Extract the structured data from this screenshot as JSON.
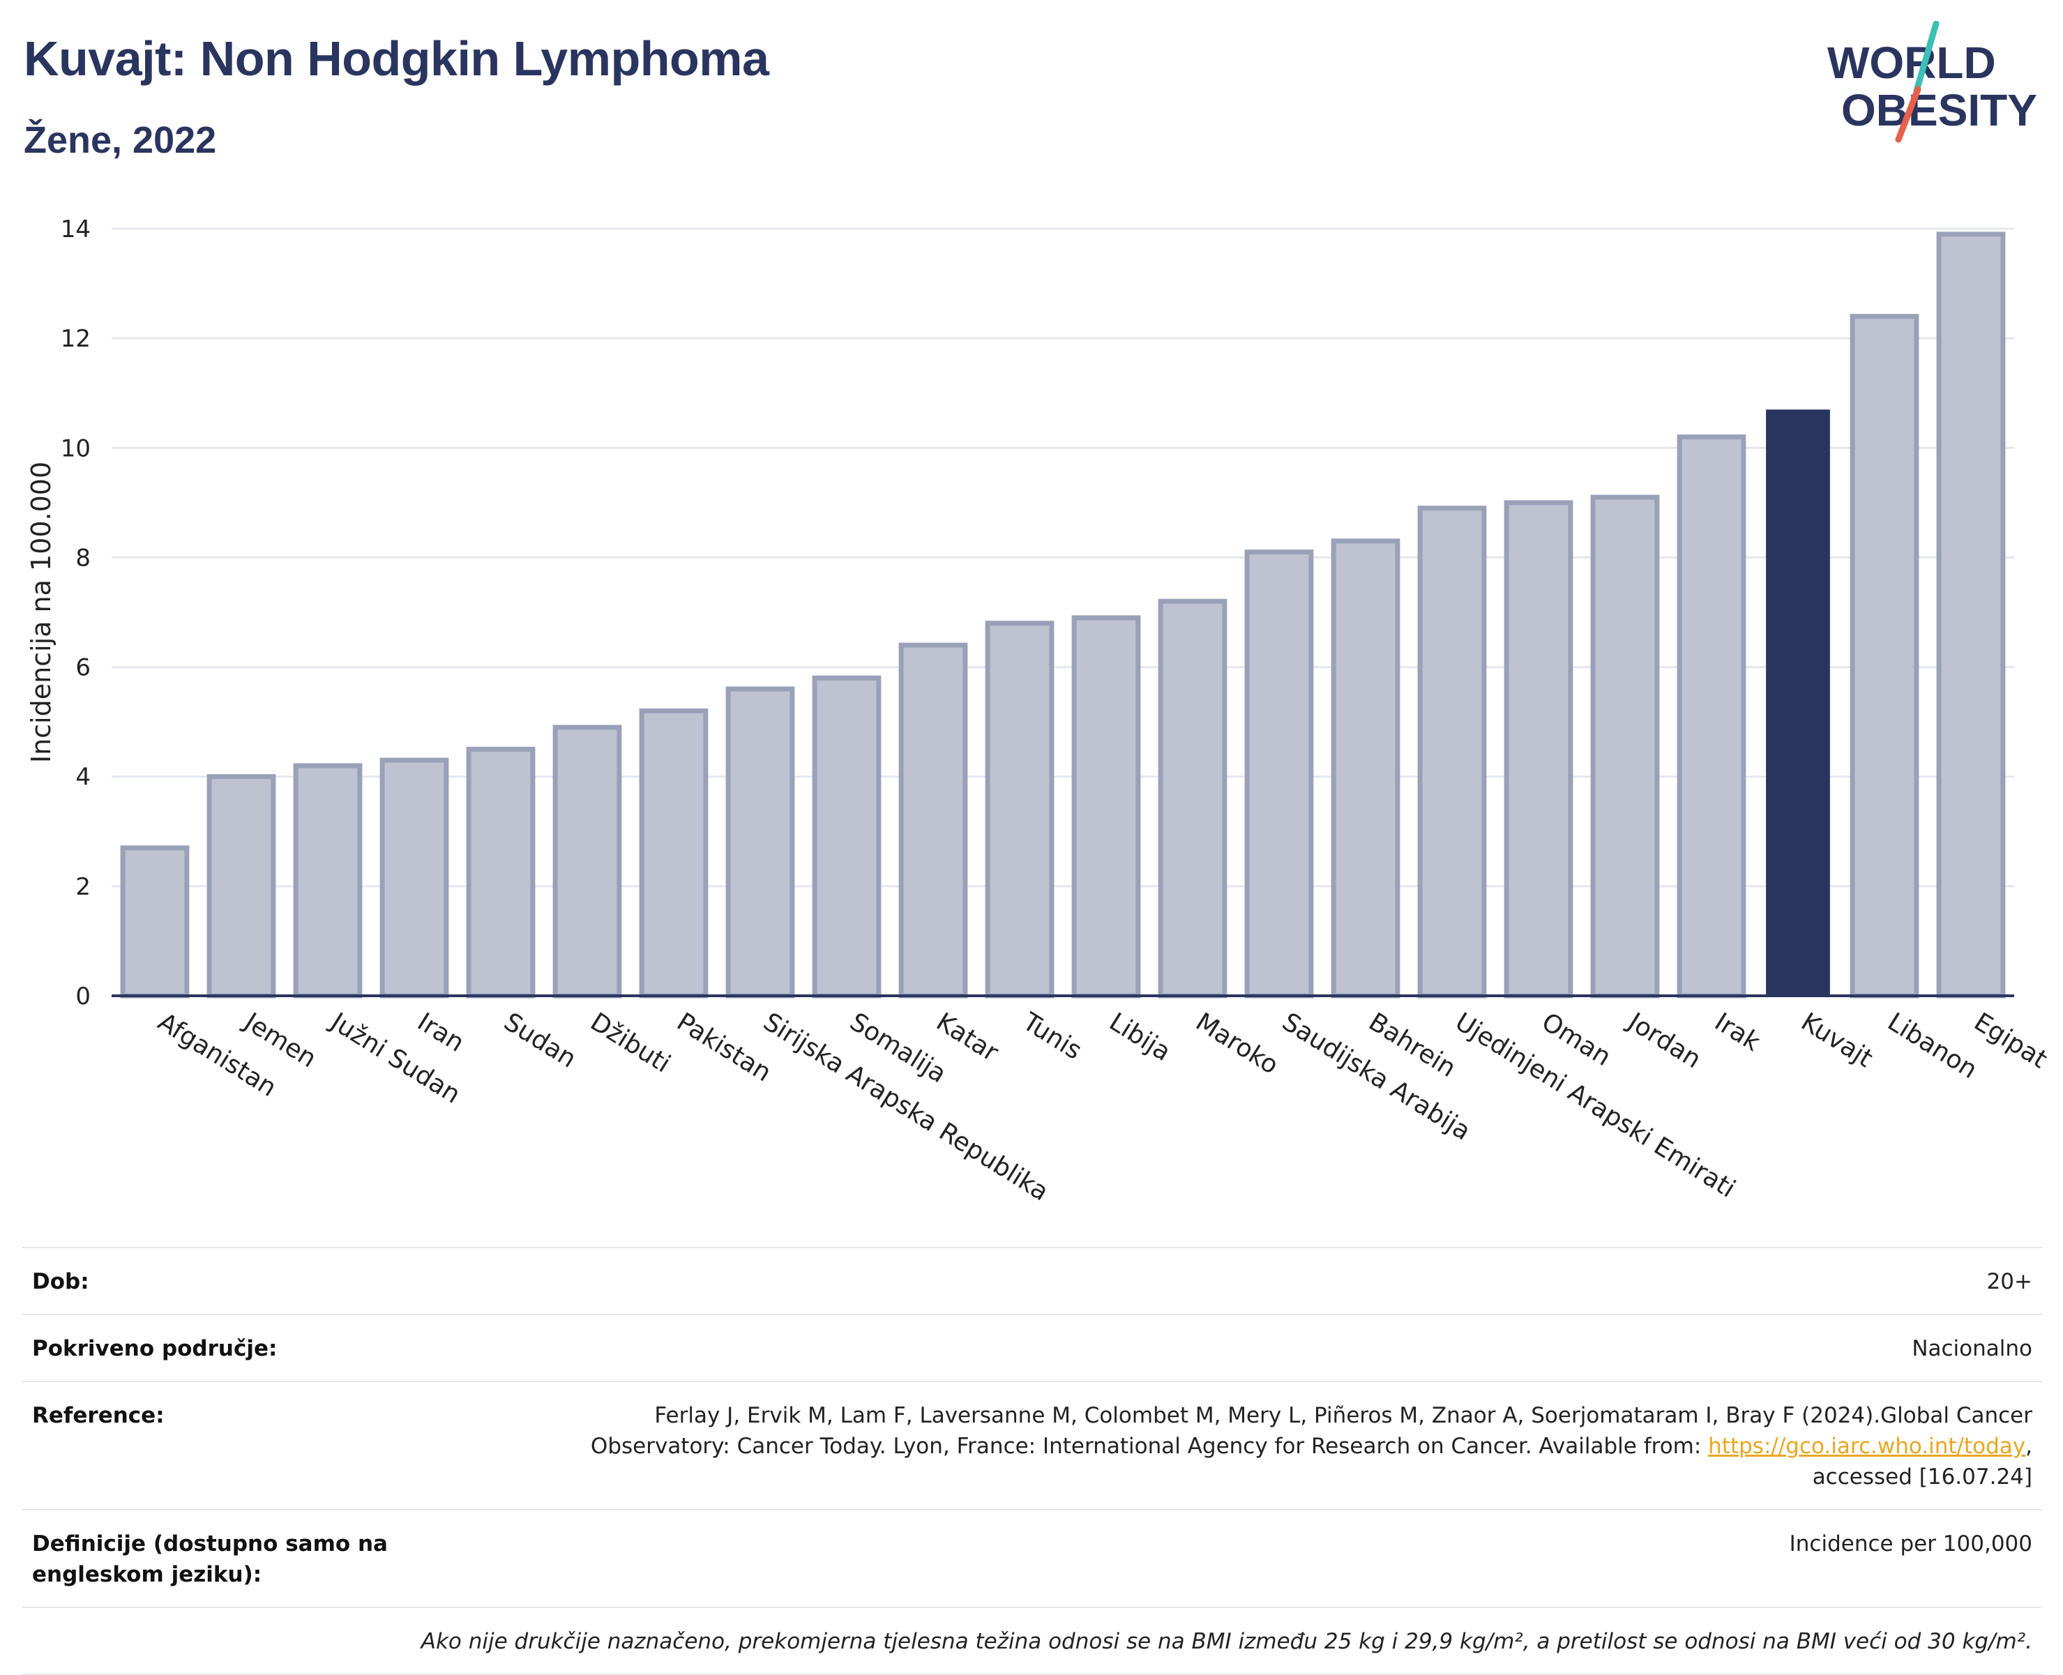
{
  "header": {
    "title": "Kuvajt: Non Hodgkin Lymphoma",
    "subtitle": "Žene, 2022"
  },
  "logo": {
    "line1": "WORLD",
    "line2": "OBESITY",
    "colors": {
      "text": "#2a355f",
      "slash_teal": "#3bbfb6",
      "slash_red": "#e8604c"
    }
  },
  "chart_data": {
    "type": "bar",
    "title": "",
    "xlabel": "",
    "ylabel": "Incidencija na 100.000",
    "ylim": [
      0,
      14
    ],
    "yticks": [
      0,
      2,
      4,
      6,
      8,
      10,
      12,
      14
    ],
    "grid": true,
    "highlight": "Kuvajt",
    "colors": {
      "bar": "#bfc3d1",
      "bar_border": "#9aa0b8",
      "highlight": "#2a355f",
      "grid": "#e6e8ef",
      "axis": "#2a355f"
    },
    "categories": [
      "Afganistan",
      "Jemen",
      "Južni Sudan",
      "Iran",
      "Sudan",
      "Džibuti",
      "Pakistan",
      "Sirijska Arapska Republika",
      "Somalija",
      "Katar",
      "Tunis",
      "Libija",
      "Maroko",
      "Saudijska Arabija",
      "Bahrein",
      "Ujedinjeni Arapski Emirati",
      "Oman",
      "Jordan",
      "Irak",
      "Kuvajt",
      "Libanon",
      "Egipat"
    ],
    "values": [
      2.7,
      4.0,
      4.2,
      4.3,
      4.5,
      4.9,
      5.2,
      5.6,
      5.8,
      6.4,
      6.8,
      6.9,
      7.2,
      8.1,
      8.3,
      8.9,
      9.0,
      9.1,
      10.2,
      10.7,
      12.4,
      13.9
    ]
  },
  "info": {
    "rows": [
      {
        "label": "Dob:",
        "value": "20+"
      },
      {
        "label": "Pokriveno područje:",
        "value": "Nacionalno"
      },
      {
        "label": "Reference:",
        "value_before": "Ferlay J, Ervik M, Lam F, Laversanne M, Colombet M, Mery L, Piñeros M, Znaor A, Soerjomataram I, Bray F (2024).Global Cancer Observatory: Cancer Today. Lyon, France: International Agency for Research on Cancer. Available from: ",
        "link": "https://gco.iarc.who.int/today",
        "value_after": ", accessed [16.07.24]"
      },
      {
        "label": "Definicije (dostupno samo na engleskom jeziku):",
        "value": "Incidence per 100,000"
      }
    ],
    "note": "Ako nije drukčije naznačeno, prekomjerna tjelesna težina odnosi se na BMI između 25 kg i 29,9 kg/m², a pretilost se odnosi na BMI veći od 30 kg/m²."
  }
}
